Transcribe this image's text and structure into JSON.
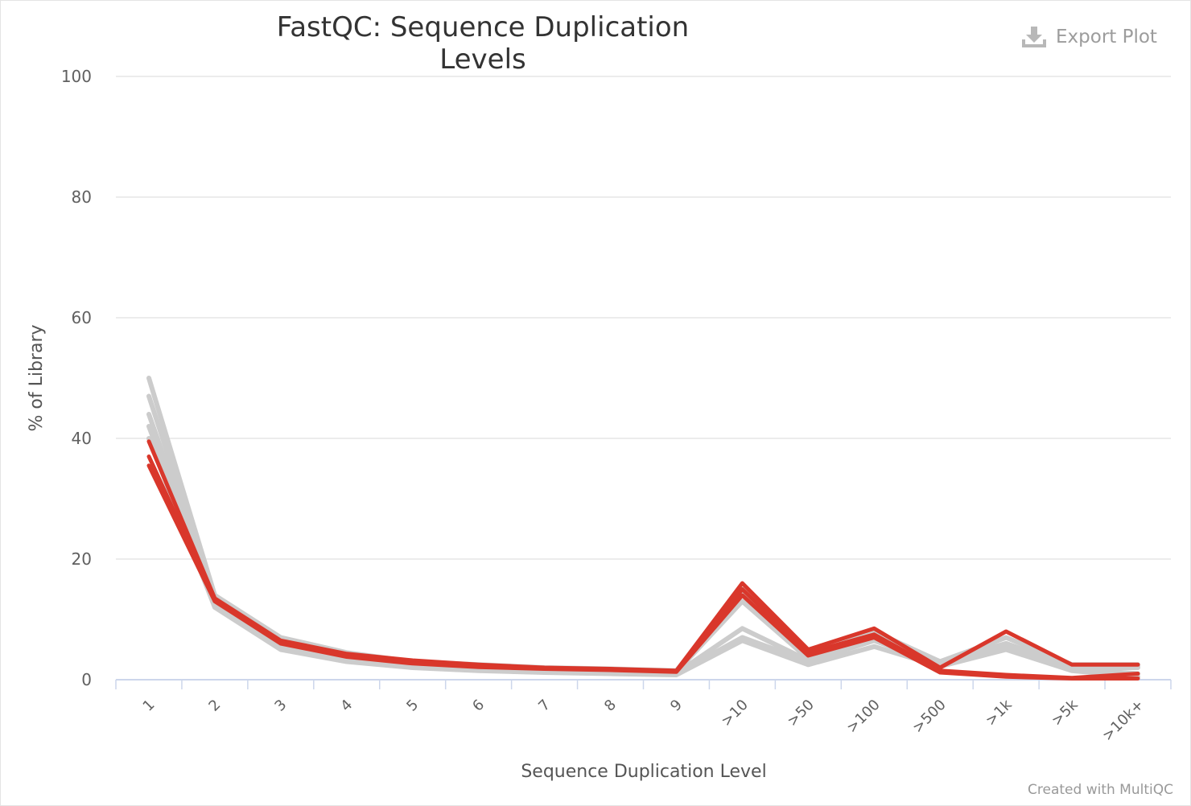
{
  "header": {
    "title": "FastQC: Sequence Duplication Levels",
    "export_label": "Export Plot",
    "export_icon": "download-icon"
  },
  "footer": {
    "credit": "Created with MultiQC"
  },
  "colors": {
    "fail": "#d9372b",
    "pass": "#cccccc",
    "grid": "#e6e6e6",
    "axis": "#ccd6eb"
  },
  "chart_data": {
    "type": "line",
    "title": "FastQC: Sequence Duplication Levels",
    "xlabel": "Sequence Duplication Level",
    "ylabel": "% of Library",
    "categories": [
      "1",
      "2",
      "3",
      "4",
      "5",
      "6",
      "7",
      "8",
      "9",
      ">10",
      ">50",
      ">100",
      ">500",
      ">1k",
      ">5k",
      ">10k+"
    ],
    "ylim": [
      0,
      100
    ],
    "yticks": [
      0,
      20,
      40,
      60,
      80,
      100
    ],
    "grid": true,
    "legend": "none",
    "series_groups": [
      {
        "status": "pass",
        "color": "#cccccc",
        "series": [
          {
            "values": [
              50,
              14,
              7,
              4.5,
              3,
              2.5,
              2,
              1.8,
              1.5,
              15,
              4,
              8,
              3,
              7,
              2.5,
              2.5
            ]
          },
          {
            "values": [
              47,
              13.5,
              6.5,
              4,
              2.8,
              2.2,
              1.8,
              1.5,
              1.3,
              13,
              3.5,
              7.5,
              3,
              6,
              2.2,
              2.2
            ]
          },
          {
            "values": [
              44,
              13,
              6,
              3.8,
              2.5,
              2,
              1.6,
              1.3,
              1.1,
              8.5,
              3.2,
              7,
              2.8,
              6,
              2,
              2
            ]
          },
          {
            "values": [
              42,
              12.5,
              5.5,
              3.3,
              2.3,
              1.8,
              1.4,
              1.1,
              1,
              7,
              3,
              6.5,
              2.5,
              5.5,
              1.8,
              1
            ]
          },
          {
            "values": [
              40,
              12,
              5,
              3,
              2,
              1.5,
              1.2,
              1,
              0.8,
              6.5,
              2.5,
              5.5,
              2.2,
              5,
              1.5,
              0.5
            ]
          }
        ]
      },
      {
        "status": "fail",
        "color": "#d9372b",
        "series": [
          {
            "values": [
              39.5,
              13.5,
              6.5,
              4.3,
              3.2,
              2.5,
              2,
              1.8,
              1.5,
              16,
              5,
              8.5,
              2,
              8,
              2.5,
              2.5
            ]
          },
          {
            "values": [
              37,
              13.2,
              6.2,
              4,
              2.9,
              2.2,
              1.9,
              1.7,
              1.4,
              15,
              4.5,
              7.5,
              1.5,
              0.8,
              0.3,
              1
            ]
          },
          {
            "values": [
              35.5,
              13,
              6,
              3.8,
              2.7,
              2.1,
              1.8,
              1.6,
              1.3,
              14,
              4,
              7,
              1.2,
              0.5,
              0.2,
              0.2
            ]
          }
        ]
      }
    ]
  }
}
